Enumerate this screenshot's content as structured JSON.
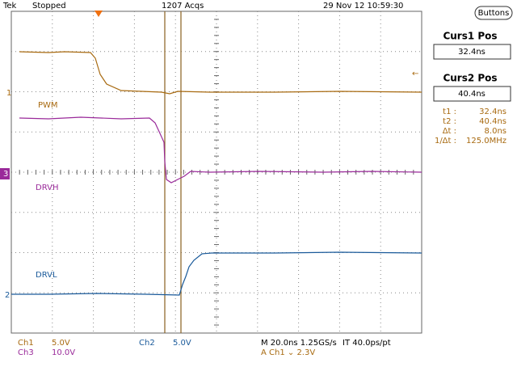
{
  "header": {
    "instrument": "Tek",
    "status": "Stopped",
    "acquisitions": "1207 Acqs",
    "datetime": "29 Nov 12 10:59:30",
    "button": "Buttons"
  },
  "cursors": {
    "curs1_title": "Curs1 Pos",
    "curs1_value": "32.4ns",
    "curs2_title": "Curs2 Pos",
    "curs2_value": "40.4ns",
    "readout": [
      [
        "t1 :",
        "32.4ns"
      ],
      [
        "t2 :",
        "40.4ns"
      ],
      [
        "Δt :",
        "8.0ns"
      ],
      [
        "1/Δt :",
        "125.0MHz"
      ]
    ]
  },
  "channels": {
    "markers": [
      "1",
      "3",
      "2"
    ],
    "labels": [
      "PWM",
      "DRVH",
      "DRVL"
    ]
  },
  "footer": {
    "ch1": "Ch1",
    "ch1_scale": "5.0V",
    "ch3": "Ch3",
    "ch3_scale": "10.0V",
    "ch2": "Ch2",
    "ch2_scale": "5.0V",
    "timebase": "M 20.0ns 1.25GS/s",
    "interp": "IT 40.0ps/pt",
    "trigger": "A  Ch1  ⌄  2.3V"
  }
}
